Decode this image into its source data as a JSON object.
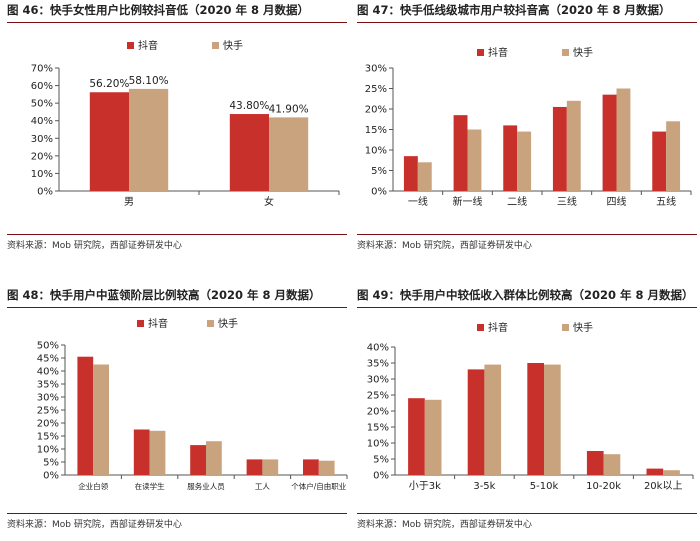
{
  "colors": {
    "douyin": "#c8302c",
    "kuaishou": "#c9a37e",
    "axis": "#555555",
    "rule": "#7a0f12"
  },
  "legend": {
    "douyin": "抖音",
    "kuaishou": "快手"
  },
  "source": "资料来源：Mob 研究院，西部证券研发中心",
  "chart_data": [
    {
      "type": "bar",
      "title": "图 46：快手女性用户比例较抖音低（2020 年 8 月数据）",
      "categories": [
        "男",
        "女"
      ],
      "series": [
        {
          "name": "抖音",
          "values": [
            56.2,
            43.8
          ],
          "labels": [
            "56.20%",
            "43.80%"
          ]
        },
        {
          "name": "快手",
          "values": [
            58.1,
            41.9
          ],
          "labels": [
            "58.10%",
            "41.90%"
          ]
        }
      ],
      "ylim": [
        0,
        70
      ],
      "yticks": [
        0,
        10,
        20,
        30,
        40,
        50,
        60,
        70
      ],
      "yticklabels": [
        "0%",
        "10%",
        "20%",
        "30%",
        "40%",
        "50%",
        "60%",
        "70%"
      ]
    },
    {
      "type": "bar",
      "title": "图 47：快手低线级城市用户较抖音高（2020 年 8 月数据）",
      "categories": [
        "一线",
        "新一线",
        "二线",
        "三线",
        "四线",
        "五线"
      ],
      "series": [
        {
          "name": "抖音",
          "values": [
            8.5,
            18.5,
            16.0,
            20.5,
            23.5,
            14.5
          ]
        },
        {
          "name": "快手",
          "values": [
            7.0,
            15.0,
            14.5,
            22.0,
            25.0,
            17.0
          ]
        }
      ],
      "ylim": [
        0,
        30
      ],
      "yticks": [
        0,
        5,
        10,
        15,
        20,
        25,
        30
      ],
      "yticklabels": [
        "0%",
        "5%",
        "10%",
        "15%",
        "20%",
        "25%",
        "30%"
      ]
    },
    {
      "type": "bar",
      "title": "图 48：快手用户中蓝领阶层比例较高（2020 年 8 月数据）",
      "categories": [
        "企业白领",
        "在读学生",
        "服务业人员",
        "工人",
        "个体户/自由职业"
      ],
      "series": [
        {
          "name": "抖音",
          "values": [
            45.5,
            17.5,
            11.5,
            6.0,
            6.0
          ]
        },
        {
          "name": "快手",
          "values": [
            42.5,
            17.0,
            13.0,
            6.0,
            5.5
          ]
        }
      ],
      "ylim": [
        0,
        50
      ],
      "yticks": [
        0,
        5,
        10,
        15,
        20,
        25,
        30,
        35,
        40,
        45,
        50
      ],
      "yticklabels": [
        "0%",
        "5%",
        "10%",
        "15%",
        "20%",
        "25%",
        "30%",
        "35%",
        "40%",
        "45%",
        "50%"
      ]
    },
    {
      "type": "bar",
      "title": "图 49：快手用户中较低收入群体比例较高（2020 年 8 月数据）",
      "categories": [
        "小于3k",
        "3-5k",
        "5-10k",
        "10-20k",
        "20k以上"
      ],
      "series": [
        {
          "name": "抖音",
          "values": [
            24.0,
            33.0,
            35.0,
            7.5,
            2.0
          ]
        },
        {
          "name": "快手",
          "values": [
            23.5,
            34.5,
            34.5,
            6.5,
            1.5
          ]
        }
      ],
      "ylim": [
        0,
        40
      ],
      "yticks": [
        0,
        5,
        10,
        15,
        20,
        25,
        30,
        35,
        40
      ],
      "yticklabels": [
        "0%",
        "5%",
        "10%",
        "15%",
        "20%",
        "25%",
        "30%",
        "35%",
        "40%"
      ]
    }
  ]
}
